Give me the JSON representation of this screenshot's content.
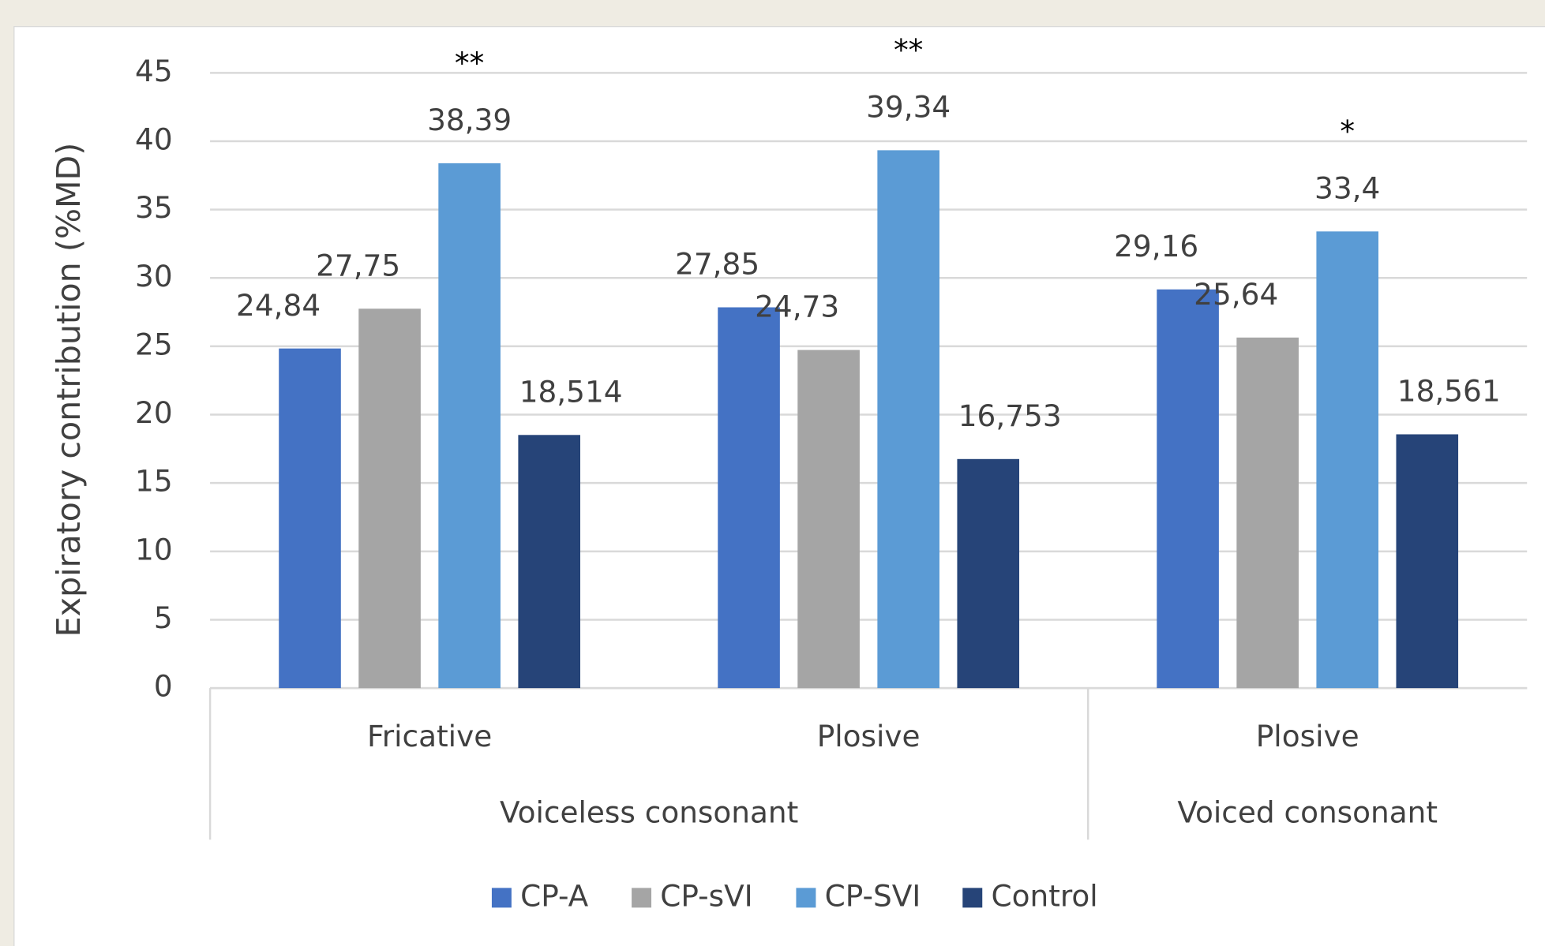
{
  "chart_data": {
    "type": "bar",
    "y_axis_label": "Expiratory contribution (%MD)",
    "categories": [
      "Fricative",
      "Plosive",
      "Plosive"
    ],
    "category_groups": [
      {
        "name": "Voiceless consonant",
        "size": 2
      },
      {
        "name": "Voiced consonant",
        "size": 1
      }
    ],
    "series": [
      {
        "name": "CP-A",
        "color": "#4472c4",
        "values": [
          24.84,
          27.85,
          29.16
        ],
        "value_labels": [
          "24,84",
          "27,85",
          "29,16"
        ]
      },
      {
        "name": "CP-sVI",
        "color": "#a5a5a5",
        "values": [
          27.75,
          24.73,
          25.64
        ],
        "value_labels": [
          "27,75",
          "24,73",
          "25,64"
        ]
      },
      {
        "name": "CP-SVI",
        "color": "#5b9bd5",
        "values": [
          38.39,
          39.34,
          33.4
        ],
        "value_labels": [
          "38,39",
          "39,34",
          "33,4"
        ]
      },
      {
        "name": "Control",
        "color": "#264478",
        "values": [
          18.514,
          16.753,
          18.561
        ],
        "value_labels": [
          "18,514",
          "16,753",
          "18,561"
        ]
      }
    ],
    "annotations": [
      "**",
      "**",
      "*"
    ],
    "ylim": [
      0,
      45
    ],
    "yticks": [
      0,
      5,
      10,
      15,
      20,
      25,
      30,
      35,
      40,
      45
    ],
    "grid": true,
    "legend": "bottom"
  }
}
